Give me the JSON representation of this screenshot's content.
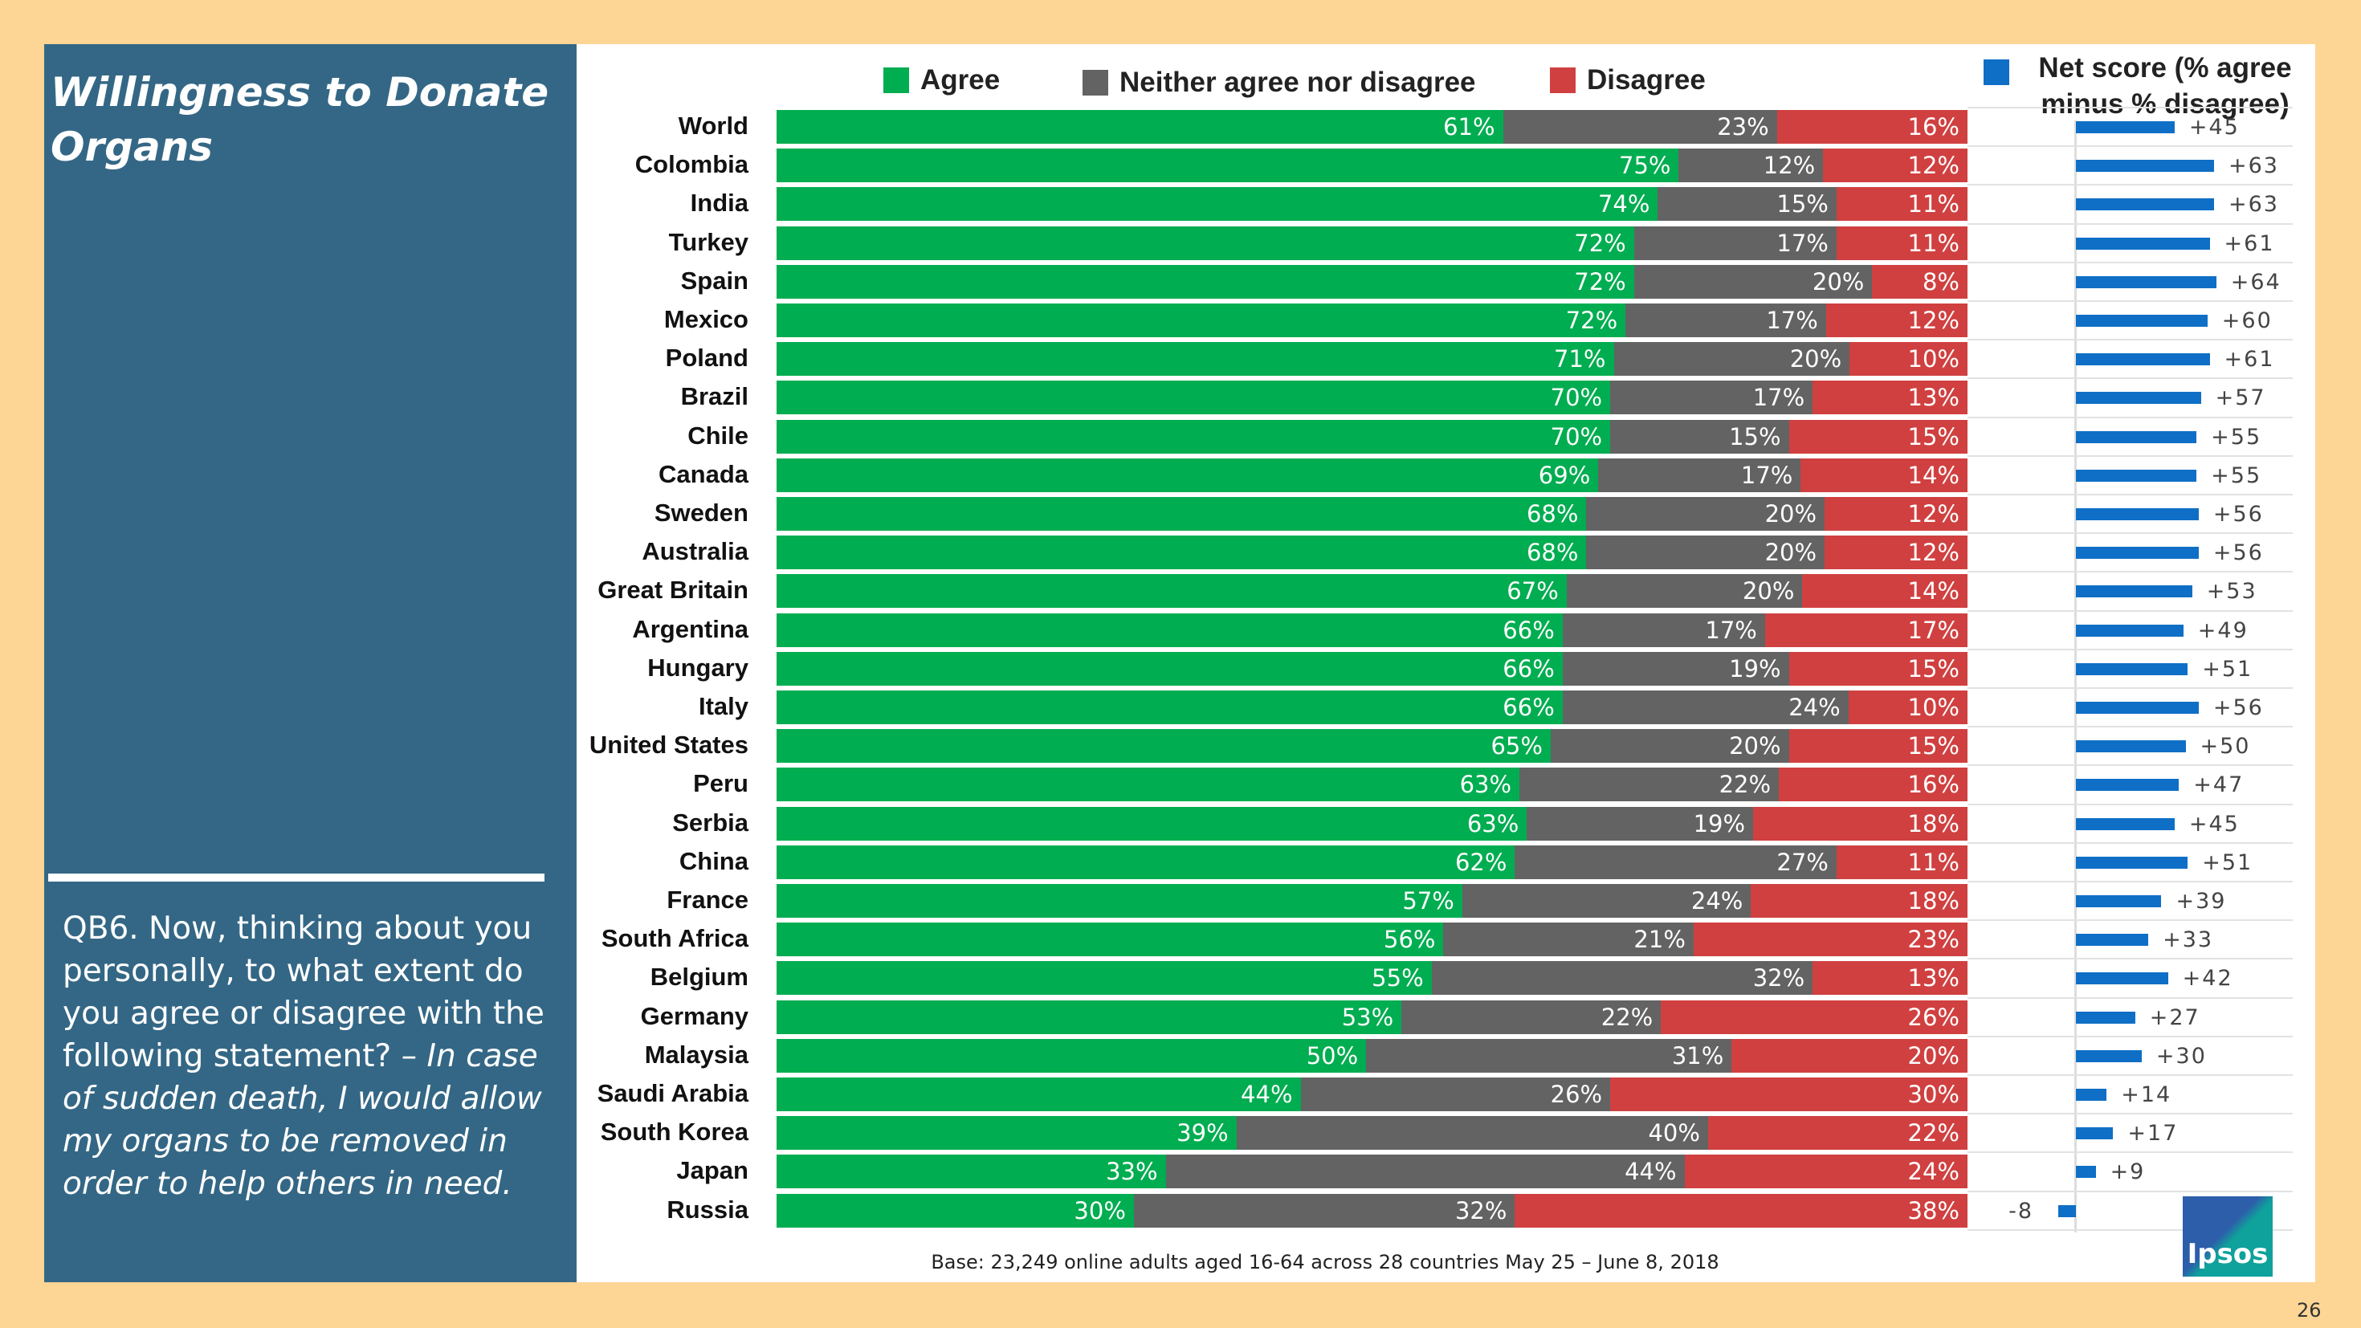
{
  "left_panel": {
    "title": "Willingness to Donate Organs",
    "question_plain": "QB6. Now, thinking about you personally, to what extent do you agree or disagree with the following statement? – ",
    "question_italic": "In case of sudden death, I would allow my organs to be removed in order to help others in need."
  },
  "colors": {
    "agree": "#00AD50",
    "neither": "#636363",
    "disagree": "#D04040",
    "net": "#0F6FC6",
    "left_panel": "#346785",
    "background": "#FDD594"
  },
  "chart_data": [
    {
      "type": "bar",
      "orientation": "horizontal",
      "stacked": true,
      "legend_position": "top",
      "categories": [
        "World",
        "Colombia",
        "India",
        "Turkey",
        "Spain",
        "Mexico",
        "Poland",
        "Brazil",
        "Chile",
        "Canada",
        "Sweden",
        "Australia",
        "Great Britain",
        "Argentina",
        "Hungary",
        "Italy",
        "United States",
        "Peru",
        "Serbia",
        "China",
        "France",
        "South Africa",
        "Belgium",
        "Germany",
        "Malaysia",
        "Saudi Arabia",
        "South Korea",
        "Japan",
        "Russia"
      ],
      "series": [
        {
          "name": "Agree",
          "values": [
            61,
            75,
            74,
            72,
            72,
            72,
            71,
            70,
            70,
            69,
            68,
            68,
            67,
            66,
            66,
            66,
            65,
            63,
            63,
            62,
            57,
            56,
            55,
            53,
            50,
            44,
            39,
            33,
            30
          ]
        },
        {
          "name": "Neither agree nor disagree",
          "values": [
            23,
            12,
            15,
            17,
            20,
            17,
            20,
            17,
            15,
            17,
            20,
            20,
            20,
            17,
            19,
            24,
            20,
            22,
            19,
            27,
            24,
            21,
            32,
            22,
            31,
            26,
            40,
            44,
            32
          ]
        },
        {
          "name": "Disagree",
          "values": [
            16,
            12,
            11,
            11,
            8,
            12,
            10,
            13,
            15,
            14,
            12,
            12,
            14,
            17,
            15,
            10,
            15,
            16,
            18,
            11,
            18,
            23,
            13,
            26,
            20,
            30,
            22,
            24,
            38
          ]
        }
      ],
      "unit": "%"
    },
    {
      "type": "bar",
      "orientation": "horizontal",
      "legend": "Net score (% agree minus % disagree)",
      "values": [
        45,
        63,
        63,
        61,
        64,
        60,
        61,
        57,
        55,
        55,
        56,
        56,
        53,
        49,
        51,
        56,
        50,
        47,
        45,
        51,
        39,
        33,
        42,
        27,
        30,
        14,
        17,
        9,
        -8
      ]
    }
  ],
  "footer": {
    "base": "Base: 23,249 online adults aged 16-64 across 28 countries  May 25 – June 8, 2018",
    "logo": "Ipsos",
    "page": "26"
  }
}
